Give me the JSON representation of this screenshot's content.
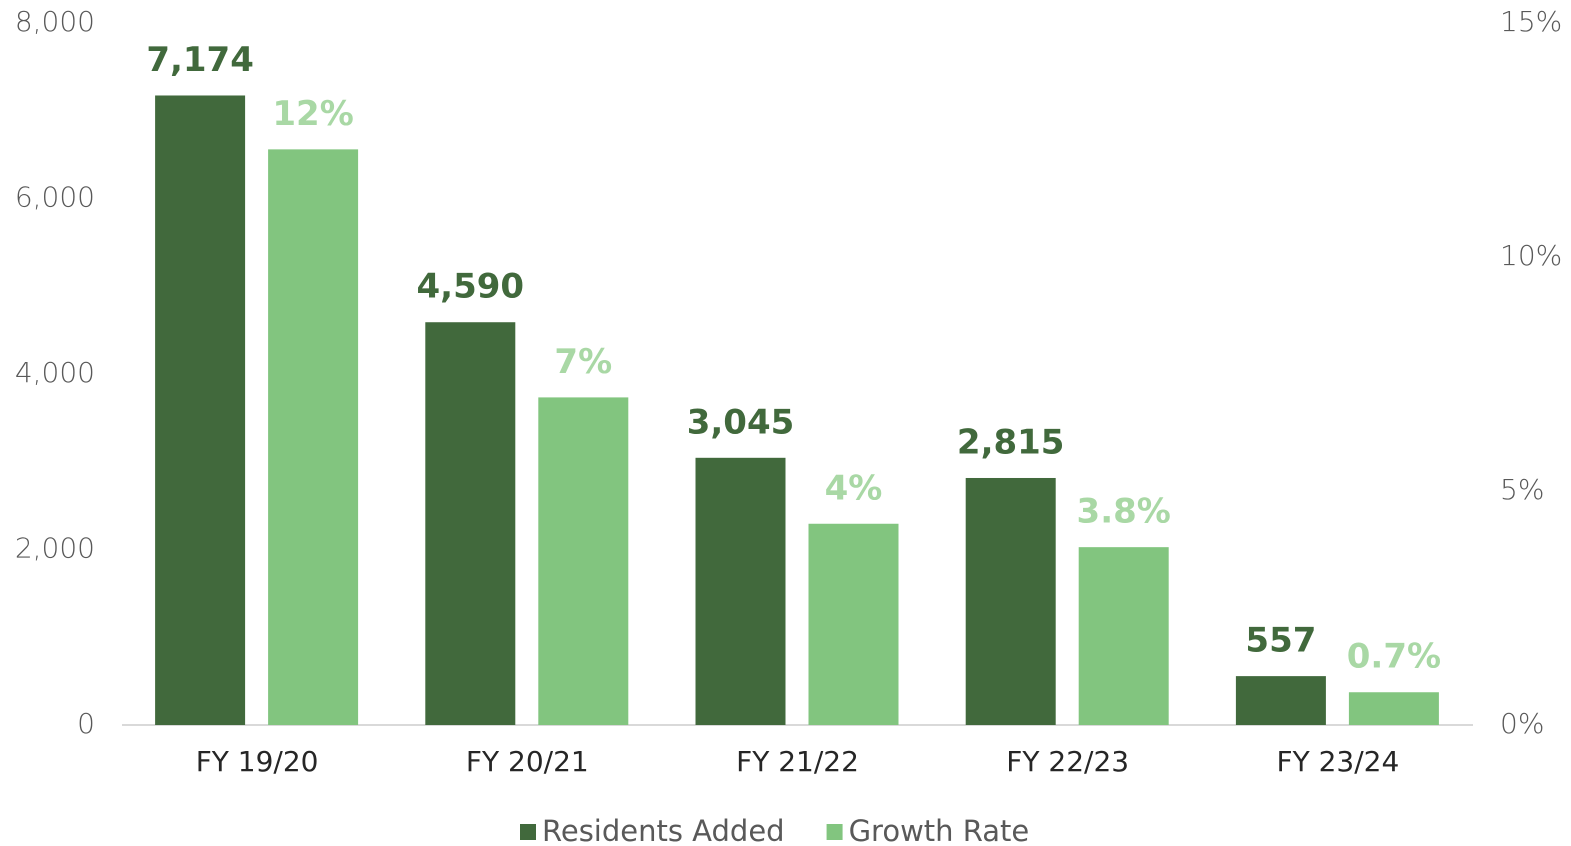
{
  "chart_data": {
    "type": "bar",
    "categories": [
      "FY 19/20",
      "FY 20/21",
      "FY 21/22",
      "FY 22/23",
      "FY 23/24"
    ],
    "series": [
      {
        "name": "Residents Added",
        "color": "#41693c",
        "label_color": "#41693c",
        "values": [
          7174,
          4590,
          3045,
          2815,
          557
        ],
        "value_labels": [
          "7,174",
          "4,590",
          "3,045",
          "2,815",
          "557"
        ]
      },
      {
        "name": "Growth Rate",
        "color": "#82c57f",
        "label_color": "#a9d8a5",
        "axis": "y2",
        "values": [
          12.3,
          7,
          4.3,
          3.8,
          0.7
        ],
        "value_labels": [
          "12%",
          "7%",
          "4%",
          "3.8%",
          "0.7%"
        ]
      }
    ],
    "ylim": [
      0,
      8000
    ],
    "yticks": [
      0,
      {
        "value": 2000,
        "label": "2,000"
      },
      {
        "value": 4000,
        "label": "4,000"
      },
      {
        "value": 6000,
        "label": "6,000"
      },
      {
        "value": 8000,
        "label": "8,000"
      }
    ],
    "y2lim": [
      0,
      15
    ],
    "y2ticks": [
      {
        "value": 0,
        "label": "0%"
      },
      {
        "value": 5,
        "label": "5%"
      },
      {
        "value": 10,
        "label": "10%"
      },
      {
        "value": 15,
        "label": "15%"
      }
    ],
    "grid": false,
    "legend": "bottom"
  }
}
